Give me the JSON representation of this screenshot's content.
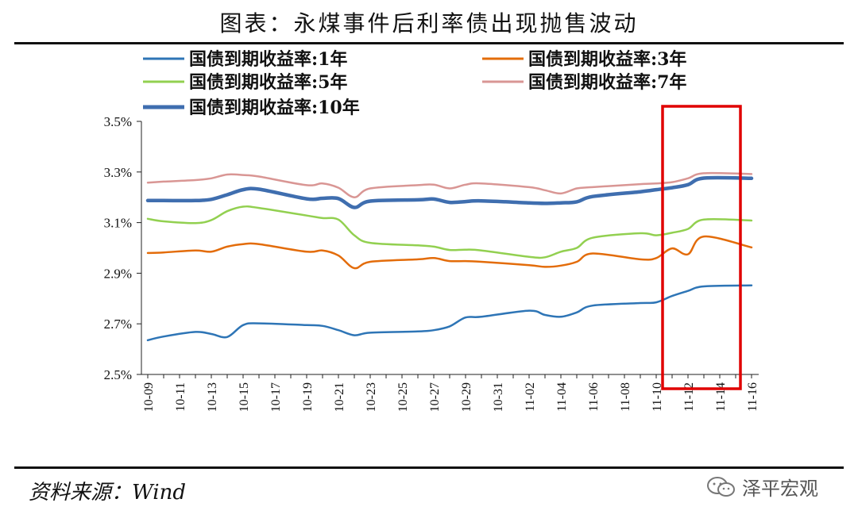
{
  "title": "图表：永煤事件后利率债出现抛售波动",
  "source": "资料来源：Wind",
  "brand": "泽平宏观",
  "colors": {
    "y1": "#2E75B6",
    "y3": "#E36C0A",
    "y5": "#92D050",
    "y7": "#D99694",
    "y10": "#3F6EAF",
    "highlight": "#E00000"
  },
  "chart_data": {
    "type": "line",
    "title": "",
    "xlabel": "",
    "ylabel": "",
    "ylim": [
      2.5,
      3.5
    ],
    "yticks": [
      "2.5%",
      "2.7%",
      "2.9%",
      "3.1%",
      "3.3%",
      "3.5%"
    ],
    "ytick_values": [
      2.5,
      2.7,
      2.9,
      3.1,
      3.3,
      3.5
    ],
    "xticks": [
      "10-09",
      "10-11",
      "10-13",
      "10-15",
      "10-17",
      "10-19",
      "10-21",
      "10-23",
      "10-25",
      "10-27",
      "10-29",
      "10-31",
      "11-02",
      "11-04",
      "11-06",
      "11-08",
      "11-10",
      "11-12",
      "11-14",
      "11-16"
    ],
    "x": [
      "10-09",
      "10-10",
      "10-12",
      "10-13",
      "10-14",
      "10-15",
      "10-16",
      "10-19",
      "10-20",
      "10-21",
      "10-22",
      "10-23",
      "10-26",
      "10-27",
      "10-28",
      "10-29",
      "10-30",
      "11-02",
      "11-03",
      "11-04",
      "11-05",
      "11-06",
      "11-09",
      "11-10",
      "11-11",
      "11-12",
      "11-13",
      "11-16"
    ],
    "legend_position": "top",
    "series": [
      {
        "name": "国债到期收益率:1年",
        "key": "y1",
        "width": 2.5,
        "values": [
          2.635,
          2.65,
          2.668,
          2.66,
          2.648,
          2.695,
          2.702,
          2.695,
          2.692,
          2.675,
          2.655,
          2.665,
          2.67,
          2.675,
          2.69,
          2.725,
          2.728,
          2.752,
          2.735,
          2.728,
          2.745,
          2.772,
          2.782,
          2.785,
          2.81,
          2.83,
          2.848,
          2.852
        ]
      },
      {
        "name": "国债到期收益率:3年",
        "key": "y3",
        "width": 2.5,
        "values": [
          2.98,
          2.982,
          2.99,
          2.985,
          3.005,
          3.015,
          3.015,
          2.985,
          2.99,
          2.97,
          2.92,
          2.945,
          2.955,
          2.96,
          2.948,
          2.948,
          2.945,
          2.932,
          2.925,
          2.93,
          2.945,
          2.978,
          2.955,
          2.96,
          2.998,
          2.975,
          3.045,
          3.002
        ]
      },
      {
        "name": "国债到期收益率:5年",
        "key": "y5",
        "width": 2.5,
        "values": [
          3.115,
          3.105,
          3.098,
          3.11,
          3.145,
          3.163,
          3.158,
          3.128,
          3.118,
          3.112,
          3.05,
          3.02,
          3.01,
          3.005,
          2.992,
          2.993,
          2.99,
          2.965,
          2.963,
          2.985,
          3.0,
          3.04,
          3.058,
          3.05,
          3.06,
          3.075,
          3.112,
          3.108
        ]
      },
      {
        "name": "国债到期收益率:7年",
        "key": "y7",
        "width": 2.5,
        "values": [
          3.258,
          3.262,
          3.268,
          3.275,
          3.29,
          3.288,
          3.282,
          3.248,
          3.255,
          3.238,
          3.2,
          3.235,
          3.248,
          3.25,
          3.235,
          3.25,
          3.255,
          3.24,
          3.228,
          3.215,
          3.235,
          3.24,
          3.252,
          3.255,
          3.26,
          3.275,
          3.295,
          3.292
        ]
      },
      {
        "name": "国债到期收益率:10年",
        "key": "y10",
        "width": 4.5,
        "values": [
          3.187,
          3.187,
          3.187,
          3.192,
          3.21,
          3.23,
          3.232,
          3.194,
          3.196,
          3.195,
          3.16,
          3.185,
          3.19,
          3.193,
          3.18,
          3.183,
          3.186,
          3.178,
          3.176,
          3.178,
          3.182,
          3.203,
          3.222,
          3.23,
          3.238,
          3.25,
          3.276,
          3.275
        ]
      }
    ],
    "legend_layout": [
      {
        "series": 0,
        "col": 0,
        "row": 0
      },
      {
        "series": 1,
        "col": 1,
        "row": 0
      },
      {
        "series": 2,
        "col": 0,
        "row": 1
      },
      {
        "series": 3,
        "col": 1,
        "row": 1
      },
      {
        "series": 4,
        "col": 0,
        "row": 2
      }
    ],
    "highlight_range": [
      "11-11",
      "11-16"
    ]
  }
}
